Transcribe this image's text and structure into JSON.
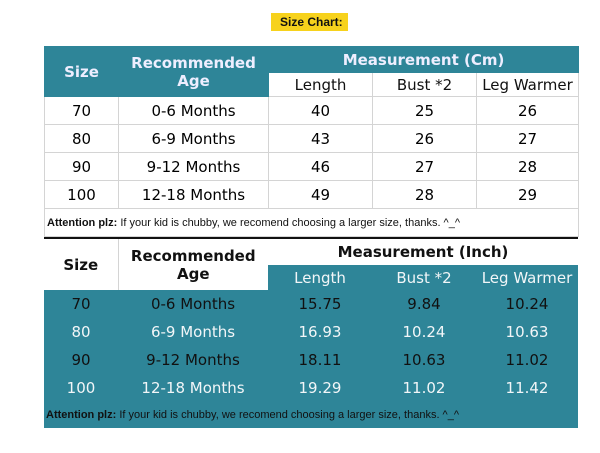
{
  "title": "Size Chart:",
  "colors": {
    "teal": "#2e8598",
    "highlight": "#f7d21c"
  },
  "cm_table": {
    "headers": {
      "size": "Size",
      "age": "Recommended Age",
      "measurement": "Measurement (Cm)",
      "length": "Length",
      "bust": "Bust *2",
      "leg": "Leg Warmer"
    },
    "rows": [
      [
        "70",
        "0-6 Months",
        "40",
        "25",
        "26"
      ],
      [
        "80",
        "6-9 Months",
        "43",
        "26",
        "27"
      ],
      [
        "90",
        "9-12 Months",
        "46",
        "27",
        "28"
      ],
      [
        "100",
        "12-18 Months",
        "49",
        "28",
        "29"
      ]
    ],
    "note_label": "Attention plz:",
    "note_text": " If your kid is chubby, we recomend choosing a larger size, thanks. ^_^"
  },
  "inch_table": {
    "headers": {
      "size": "Size",
      "age": "Recommended Age",
      "measurement": "Measurement (Inch)",
      "length": "Length",
      "bust": "Bust *2",
      "leg": "Leg Warmer"
    },
    "rows": [
      [
        "70",
        "0-6 Months",
        "15.75",
        "9.84",
        "10.24"
      ],
      [
        "80",
        "6-9 Months",
        "16.93",
        "10.24",
        "10.63"
      ],
      [
        "90",
        "9-12 Months",
        "18.11",
        "10.63",
        "11.02"
      ],
      [
        "100",
        "12-18 Months",
        "19.29",
        "11.02",
        "11.42"
      ]
    ],
    "note_label": "Attention plz:",
    "note_text": " If your kid is chubby, we recomend choosing a larger size, thanks. ^_^"
  }
}
